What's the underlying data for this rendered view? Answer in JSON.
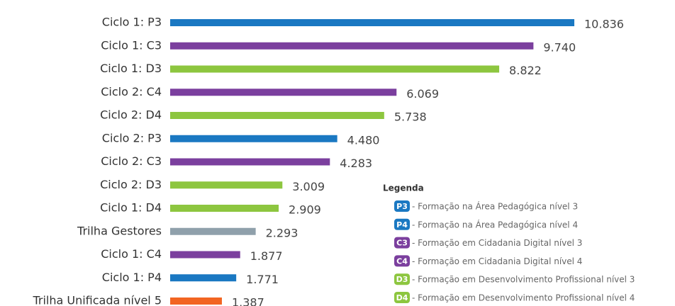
{
  "chart_data": {
    "type": "barh",
    "categories": [
      "Ciclo 1: P3",
      "Ciclo 1: C3",
      "Ciclo 1: D3",
      "Ciclo 2: C4",
      "Ciclo 2: D4",
      "Ciclo 2: P3",
      "Ciclo 2: C3",
      "Ciclo 2: D3",
      "Ciclo 1: D4",
      "Trilha Gestores",
      "Ciclo 1: C4",
      "Ciclo 1: P4",
      "Trilha Unificada nível 5"
    ],
    "values": [
      10836,
      9740,
      8822,
      6069,
      5738,
      4480,
      4283,
      3009,
      2909,
      2293,
      1877,
      1771,
      1387
    ],
    "value_labels": [
      "10.836",
      "9.740",
      "8.822",
      "6.069",
      "5.738",
      "4.480",
      "4.283",
      "3.009",
      "2.909",
      "2.293",
      "1.877",
      "1.771",
      "1.387"
    ],
    "colors": [
      "#1a78c2",
      "#7b3f9e",
      "#8dc63f",
      "#7b3f9e",
      "#8dc63f",
      "#1a78c2",
      "#7b3f9e",
      "#8dc63f",
      "#8dc63f",
      "#8fa0ab",
      "#7b3f9e",
      "#1a78c2",
      "#f26522"
    ],
    "legend": {
      "title": "Legenda",
      "items": [
        {
          "code": "P3",
          "text": "- Formação na Área Pedagógica nível 3",
          "color": "#1a78c2"
        },
        {
          "code": "P4",
          "text": "- Formação na Área Pedagógica nível 4",
          "color": "#1a78c2"
        },
        {
          "code": "C3",
          "text": "- Formação em Cidadania Digital nível 3",
          "color": "#7b3f9e"
        },
        {
          "code": "C4",
          "text": "- Formação em Cidadania Digital nível 4",
          "color": "#7b3f9e"
        },
        {
          "code": "D3",
          "text": "- Formação em Desenvolvimento Profissional nível 3",
          "color": "#8dc63f"
        },
        {
          "code": "D4",
          "text": "- Formação em Desenvolvimento Profissional nível 4",
          "color": "#8dc63f"
        }
      ]
    }
  }
}
